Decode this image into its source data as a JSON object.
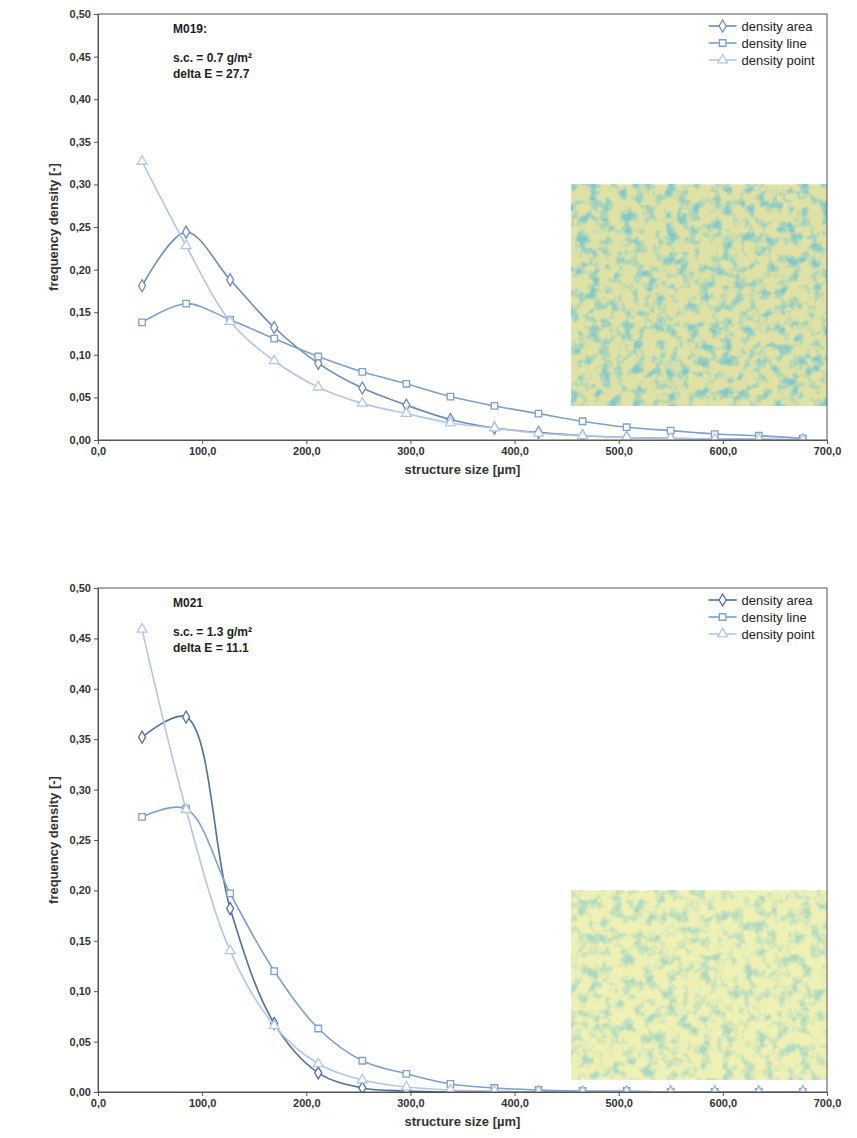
{
  "chart_data": [
    {
      "type": "line",
      "annotations": [
        "M019:",
        "s.c. = 0.7 g/m²",
        "delta E = 27.7"
      ],
      "x_label": "structure size [µm]",
      "y_label": "frequency density [-]",
      "x": [
        42.3,
        84.6,
        126.9,
        169.2,
        211.5,
        253.8,
        296.1,
        338.4,
        380.7,
        423.0,
        465.3,
        507.6,
        549.9,
        592.2,
        634.5,
        676.8
      ],
      "series": [
        {
          "name": "density area",
          "color": "#6b8cba",
          "marker": "diamond",
          "line_style": "solid",
          "values": [
            0.181,
            0.244,
            0.188,
            0.132,
            0.09,
            0.061,
            0.041,
            0.024,
            0.014,
            0.009,
            0.005,
            0.003,
            0.002,
            0.001,
            0.001,
            0.0
          ]
        },
        {
          "name": "density line",
          "color": "#7f9fcc",
          "marker": "square",
          "line_style": "solid",
          "values": [
            0.138,
            0.16,
            0.141,
            0.119,
            0.098,
            0.08,
            0.066,
            0.051,
            0.04,
            0.031,
            0.022,
            0.015,
            0.011,
            0.007,
            0.005,
            0.002
          ]
        },
        {
          "name": "density point",
          "color": "#b3c7e4",
          "marker": "triangle",
          "line_style": "solid",
          "values": [
            0.327,
            0.228,
            0.139,
            0.093,
            0.062,
            0.043,
            0.031,
            0.02,
            0.014,
            0.008,
            0.005,
            0.003,
            0.002,
            0.001,
            0.001,
            0.0
          ]
        }
      ],
      "xlim": [
        0,
        700
      ],
      "xticks": [
        {
          "value": 0,
          "label": "0,0"
        },
        {
          "value": 100,
          "label": "100,0"
        },
        {
          "value": 200,
          "label": "200,0"
        },
        {
          "value": 300,
          "label": "300,0"
        },
        {
          "value": 400,
          "label": "400,0"
        },
        {
          "value": 500,
          "label": "500,0"
        },
        {
          "value": 600,
          "label": "600,0"
        },
        {
          "value": 700,
          "label": "700,0"
        }
      ],
      "ylim": [
        0,
        0.5
      ],
      "yticks": [
        {
          "value": 0,
          "label": "0,00"
        },
        {
          "value": 0.05,
          "label": "0,05"
        },
        {
          "value": 0.1,
          "label": "0,10"
        },
        {
          "value": 0.15,
          "label": "0,15"
        },
        {
          "value": 0.2,
          "label": "0,20"
        },
        {
          "value": 0.25,
          "label": "0,25"
        },
        {
          "value": 0.3,
          "label": "0,30"
        },
        {
          "value": 0.35,
          "label": "0,35"
        },
        {
          "value": 0.4,
          "label": "0,40"
        },
        {
          "value": 0.45,
          "label": "0,45"
        },
        {
          "value": 0.5,
          "label": "0,50"
        }
      ],
      "grid": false,
      "legend": "upper right"
    },
    {
      "type": "line",
      "annotations": [
        "M021",
        "s.c. = 1.3 g/m²",
        "delta E = 11.1"
      ],
      "x_label": "structure size [µm]",
      "y_label": "frequency density [-]",
      "x": [
        42.3,
        84.6,
        126.9,
        169.2,
        211.5,
        253.8,
        296.1,
        338.4,
        380.7,
        423.0,
        465.3,
        507.6,
        549.9,
        592.2,
        634.5,
        676.8
      ],
      "series": [
        {
          "name": "density area",
          "color": "#4f6f9f",
          "marker": "diamond",
          "line_style": "solid",
          "values": [
            0.352,
            0.372,
            0.182,
            0.068,
            0.019,
            0.004,
            0.001,
            0,
            0,
            0,
            0,
            0,
            0,
            0,
            0,
            0
          ]
        },
        {
          "name": "density line",
          "color": "#7f9fcc",
          "marker": "square",
          "line_style": "solid",
          "values": [
            0.273,
            0.281,
            0.197,
            0.12,
            0.063,
            0.031,
            0.018,
            0.008,
            0.004,
            0.002,
            0.001,
            0.001,
            0,
            0,
            0,
            0
          ]
        },
        {
          "name": "density point",
          "color": "#b3c7e4",
          "marker": "triangle",
          "line_style": "solid",
          "values": [
            0.459,
            0.28,
            0.14,
            0.066,
            0.028,
            0.012,
            0.005,
            0.002,
            0.001,
            0,
            0,
            0,
            0,
            0,
            0,
            0
          ]
        }
      ],
      "xlim": [
        0,
        700
      ],
      "xticks": [
        {
          "value": 0,
          "label": "0,0"
        },
        {
          "value": 100,
          "label": "100,0"
        },
        {
          "value": 200,
          "label": "200,0"
        },
        {
          "value": 300,
          "label": "300,0"
        },
        {
          "value": 400,
          "label": "400,0"
        },
        {
          "value": 500,
          "label": "500,0"
        },
        {
          "value": 600,
          "label": "600,0"
        },
        {
          "value": 700,
          "label": "700,0"
        }
      ],
      "ylim": [
        0,
        0.5
      ],
      "yticks": [
        {
          "value": 0,
          "label": "0,00"
        },
        {
          "value": 0.05,
          "label": "0,05"
        },
        {
          "value": 0.1,
          "label": "0,10"
        },
        {
          "value": 0.15,
          "label": "0,15"
        },
        {
          "value": 0.2,
          "label": "0,20"
        },
        {
          "value": 0.25,
          "label": "0,25"
        },
        {
          "value": 0.3,
          "label": "0,30"
        },
        {
          "value": 0.35,
          "label": "0,35"
        },
        {
          "value": 0.4,
          "label": "0,40"
        },
        {
          "value": 0.45,
          "label": "0,45"
        },
        {
          "value": 0.5,
          "label": "0,50"
        }
      ],
      "grid": false,
      "legend": "upper right"
    }
  ]
}
